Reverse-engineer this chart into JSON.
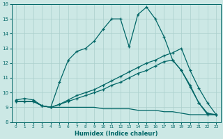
{
  "xlabel": "Humidex (Indice chaleur)",
  "x_ticks": [
    0,
    1,
    2,
    3,
    4,
    5,
    6,
    7,
    8,
    9,
    10,
    11,
    12,
    13,
    14,
    15,
    16,
    17,
    18,
    19,
    20,
    21,
    22,
    23
  ],
  "xlim": [
    -0.5,
    23.5
  ],
  "ylim": [
    8,
    16
  ],
  "y_ticks": [
    8,
    9,
    10,
    11,
    12,
    13,
    14,
    15,
    16
  ],
  "bg_color": "#cce8e5",
  "grid_color": "#aacfcc",
  "line_color": "#006666",
  "line1_y": [
    9.5,
    9.6,
    9.5,
    9.1,
    9.0,
    10.7,
    12.2,
    12.8,
    13.0,
    13.5,
    14.3,
    15.0,
    15.0,
    13.1,
    15.3,
    15.8,
    15.0,
    13.8,
    12.2,
    11.5,
    10.4,
    9.3,
    8.6,
    8.5
  ],
  "line2_y": [
    9.4,
    9.4,
    9.4,
    9.1,
    9.0,
    9.2,
    9.4,
    9.6,
    9.8,
    10.0,
    10.2,
    10.5,
    10.7,
    11.0,
    11.3,
    11.5,
    11.8,
    12.1,
    12.2,
    11.5,
    10.5,
    9.3,
    8.5,
    8.5
  ],
  "line3_y": [
    9.4,
    9.4,
    9.4,
    9.1,
    9.0,
    9.2,
    9.5,
    9.8,
    10.0,
    10.2,
    10.5,
    10.8,
    11.1,
    11.4,
    11.7,
    12.0,
    12.2,
    12.5,
    12.7,
    13.0,
    11.5,
    10.3,
    9.3,
    8.5
  ],
  "line4_y": [
    9.4,
    9.4,
    9.4,
    9.1,
    9.0,
    9.0,
    9.0,
    9.0,
    9.0,
    9.0,
    8.9,
    8.9,
    8.9,
    8.9,
    8.8,
    8.8,
    8.8,
    8.7,
    8.7,
    8.6,
    8.5,
    8.5,
    8.5,
    8.5
  ]
}
